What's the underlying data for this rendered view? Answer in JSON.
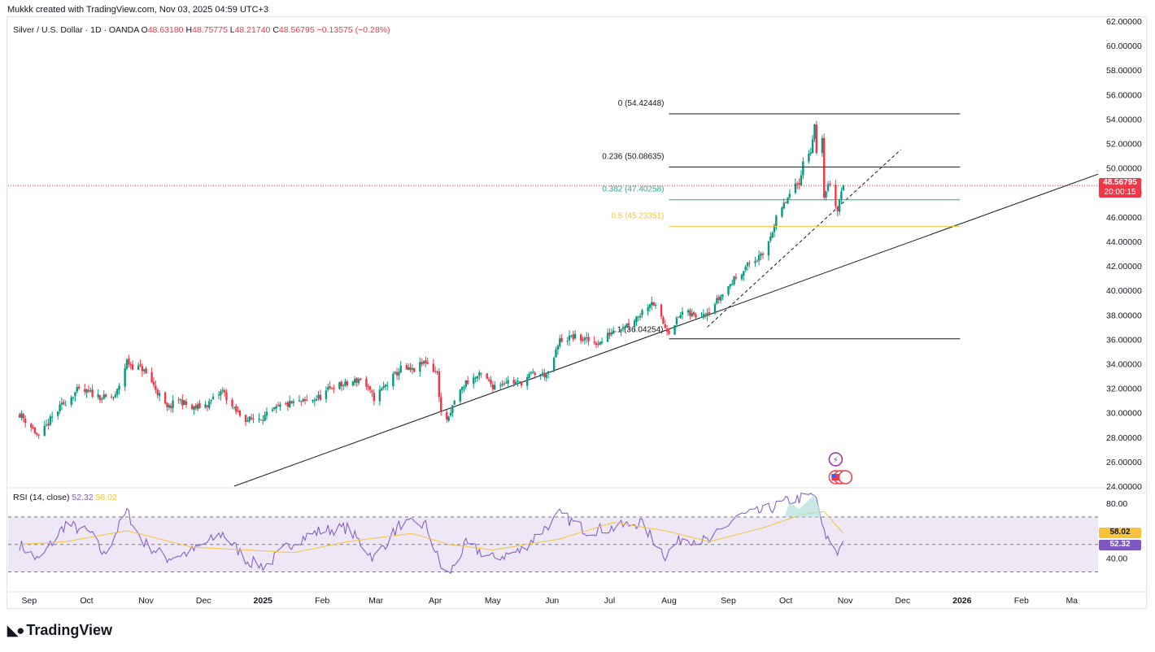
{
  "credit": "Mukkk created with TradingView.com, Nov 03, 2025 04:59 UTC+3",
  "brand": "TradingView",
  "legend": {
    "symbol": "Silver / U.S. Dollar · 1D · OANDA",
    "o_label": "O",
    "o": "48.63180",
    "h_label": "H",
    "h": "48.75775",
    "l_label": "L",
    "l": "48.21740",
    "c_label": "C",
    "c": "48.56795",
    "change": "−0.13575 (−0.28%)"
  },
  "rsi_legend": {
    "name": "RSI (14, close)",
    "rsi": "52.32",
    "ma": "58.02"
  },
  "last_price": {
    "value": "48.56795",
    "countdown": "20:00:15"
  },
  "rsi_tags": {
    "ma": "58.02",
    "rsi": "52.32"
  },
  "colors": {
    "up": "#089981",
    "down": "#f23645",
    "rsi": "#7e57c2",
    "rsi_ma": "#f7c33b",
    "fib_382": "#22ab94",
    "fib_5": "#f7c33b",
    "rsi_band": "#ede7f6"
  },
  "chart_data": {
    "type": "candlestick",
    "price_axis": {
      "min": 24,
      "max": 62,
      "ticks": [
        "62.00000",
        "60.00000",
        "58.00000",
        "56.00000",
        "54.00000",
        "52.00000",
        "50.00000",
        "48.00000",
        "46.00000",
        "44.00000",
        "42.00000",
        "40.00000",
        "38.00000",
        "36.00000",
        "34.00000",
        "32.00000",
        "30.00000",
        "28.00000",
        "26.00000",
        "24.00000"
      ]
    },
    "time_axis": [
      "Sep",
      "Oct",
      "Nov",
      "Dec",
      "2025",
      "Feb",
      "Mar",
      "Apr",
      "May",
      "Jun",
      "Jul",
      "Aug",
      "Sep",
      "Oct",
      "Nov",
      "Dec",
      "2026",
      "Feb",
      "Ma"
    ],
    "time_axis_bold": [
      "2025",
      "2026"
    ],
    "close_path": [
      [
        "2024-08-27",
        29.9
      ],
      [
        "2024-09-03",
        28.7
      ],
      [
        "2024-09-06",
        27.9
      ],
      [
        "2024-09-12",
        29.4
      ],
      [
        "2024-09-18",
        30.6
      ],
      [
        "2024-09-26",
        31.8
      ],
      [
        "2024-10-03",
        31.6
      ],
      [
        "2024-10-10",
        31.2
      ],
      [
        "2024-10-16",
        31.3
      ],
      [
        "2024-10-22",
        34.2
      ],
      [
        "2024-10-25",
        33.8
      ],
      [
        "2024-10-30",
        33.6
      ],
      [
        "2024-11-04",
        32.5
      ],
      [
        "2024-11-12",
        30.3
      ],
      [
        "2024-11-18",
        31.1
      ],
      [
        "2024-11-25",
        30.3
      ],
      [
        "2024-12-03",
        30.7
      ],
      [
        "2024-12-11",
        31.8
      ],
      [
        "2024-12-17",
        30.2
      ],
      [
        "2024-12-24",
        29.4
      ],
      [
        "2025-01-02",
        29.7
      ],
      [
        "2025-01-10",
        30.5
      ],
      [
        "2025-01-17",
        30.8
      ],
      [
        "2025-01-24",
        30.9
      ],
      [
        "2025-01-31",
        31.3
      ],
      [
        "2025-02-07",
        32.2
      ],
      [
        "2025-02-14",
        32.3
      ],
      [
        "2025-02-21",
        32.8
      ],
      [
        "2025-02-28",
        31.2
      ],
      [
        "2025-03-07",
        32.4
      ],
      [
        "2025-03-14",
        33.6
      ],
      [
        "2025-03-20",
        33.4
      ],
      [
        "2025-03-27",
        34.2
      ],
      [
        "2025-04-02",
        33.2
      ],
      [
        "2025-04-04",
        29.9
      ],
      [
        "2025-04-08",
        29.4
      ],
      [
        "2025-04-11",
        31.0
      ],
      [
        "2025-04-17",
        32.5
      ],
      [
        "2025-04-25",
        33.1
      ],
      [
        "2025-05-01",
        32.2
      ],
      [
        "2025-05-08",
        32.6
      ],
      [
        "2025-05-15",
        32.4
      ],
      [
        "2025-05-22",
        33.2
      ],
      [
        "2025-05-30",
        33.1
      ],
      [
        "2025-06-05",
        35.9
      ],
      [
        "2025-06-12",
        36.2
      ],
      [
        "2025-06-19",
        35.9
      ],
      [
        "2025-06-26",
        35.7
      ],
      [
        "2025-07-03",
        36.8
      ],
      [
        "2025-07-11",
        37.3
      ],
      [
        "2025-07-17",
        38.1
      ],
      [
        "2025-07-23",
        39.2
      ],
      [
        "2025-07-30",
        37.0
      ],
      [
        "2025-08-01",
        36.7
      ],
      [
        "2025-08-08",
        38.2
      ],
      [
        "2025-08-15",
        37.9
      ],
      [
        "2025-08-22",
        38.4
      ],
      [
        "2025-08-29",
        39.7
      ],
      [
        "2025-09-05",
        41.1
      ],
      [
        "2025-09-12",
        42.2
      ],
      [
        "2025-09-19",
        42.8
      ],
      [
        "2025-09-26",
        45.8
      ],
      [
        "2025-10-03",
        47.8
      ],
      [
        "2025-10-08",
        48.9
      ],
      [
        "2025-10-10",
        50.4
      ],
      [
        "2025-10-14",
        51.5
      ],
      [
        "2025-10-16",
        53.5
      ],
      [
        "2025-10-17",
        51.0
      ],
      [
        "2025-10-20",
        52.2
      ],
      [
        "2025-10-21",
        47.8
      ],
      [
        "2025-10-24",
        48.8
      ],
      [
        "2025-10-28",
        46.5
      ],
      [
        "2025-10-30",
        48.3
      ],
      [
        "2025-10-31",
        48.7
      ]
    ],
    "fibonacci": [
      {
        "label": "0 (54.42448)",
        "value": 54.42448,
        "color": "#131722"
      },
      {
        "label": "0.236 (50.08635)",
        "value": 50.08635,
        "color": "#131722"
      },
      {
        "label": "0.382 (47.40258)",
        "value": 47.40258,
        "color": "#22ab94"
      },
      {
        "label": "0.5 (45.23351)",
        "value": 45.23351,
        "color": "#f7c33b"
      },
      {
        "label": "1 (36.04254)",
        "value": 36.04254,
        "color": "#131722"
      }
    ],
    "fib_start": "2025-08-01",
    "fib_end": "2025-12-31",
    "trendline": {
      "from": [
        "2024-12-17",
        24.0
      ],
      "to": [
        "2026-03-13",
        49.5
      ]
    },
    "dashed_trendline": {
      "from": [
        "2025-08-21",
        37.0
      ],
      "to": [
        "2025-11-30",
        51.5
      ]
    },
    "last_close": 48.56795,
    "rsi": {
      "axis_ticks": [
        "80.00",
        "40.00"
      ],
      "levels": [
        70,
        50,
        30
      ],
      "values": [
        [
          "2024-08-27",
          50
        ],
        [
          "2024-09-06",
          38
        ],
        [
          "2024-09-20",
          65
        ],
        [
          "2024-10-03",
          58
        ],
        [
          "2024-10-10",
          42
        ],
        [
          "2024-10-22",
          74
        ],
        [
          "2024-10-30",
          52
        ],
        [
          "2024-11-12",
          40
        ],
        [
          "2024-11-25",
          45
        ],
        [
          "2024-12-11",
          58
        ],
        [
          "2024-12-24",
          38
        ],
        [
          "2025-01-02",
          34
        ],
        [
          "2025-01-17",
          52
        ],
        [
          "2025-01-31",
          60
        ],
        [
          "2025-02-14",
          62
        ],
        [
          "2025-02-28",
          40
        ],
        [
          "2025-03-14",
          65
        ],
        [
          "2025-03-27",
          64
        ],
        [
          "2025-04-04",
          34
        ],
        [
          "2025-04-08",
          28
        ],
        [
          "2025-04-17",
          50
        ],
        [
          "2025-05-01",
          40
        ],
        [
          "2025-05-15",
          45
        ],
        [
          "2025-06-05",
          72
        ],
        [
          "2025-06-19",
          60
        ],
        [
          "2025-07-03",
          62
        ],
        [
          "2025-07-17",
          66
        ],
        [
          "2025-07-30",
          42
        ],
        [
          "2025-08-08",
          55
        ],
        [
          "2025-08-22",
          52
        ],
        [
          "2025-09-05",
          70
        ],
        [
          "2025-09-19",
          74
        ],
        [
          "2025-10-03",
          82
        ],
        [
          "2025-10-16",
          86
        ],
        [
          "2025-10-21",
          58
        ],
        [
          "2025-10-28",
          45
        ],
        [
          "2025-10-31",
          52.32
        ]
      ],
      "ma": [
        [
          "2024-08-27",
          50
        ],
        [
          "2024-09-20",
          52
        ],
        [
          "2024-10-22",
          60
        ],
        [
          "2024-11-25",
          48
        ],
        [
          "2024-12-24",
          46
        ],
        [
          "2025-01-17",
          44
        ],
        [
          "2025-02-14",
          52
        ],
        [
          "2025-03-20",
          58
        ],
        [
          "2025-04-08",
          50
        ],
        [
          "2025-05-01",
          46
        ],
        [
          "2025-06-05",
          54
        ],
        [
          "2025-07-03",
          66
        ],
        [
          "2025-07-30",
          60
        ],
        [
          "2025-08-22",
          52
        ],
        [
          "2025-09-19",
          62
        ],
        [
          "2025-10-10",
          72
        ],
        [
          "2025-10-21",
          74
        ],
        [
          "2025-10-31",
          58.02
        ]
      ]
    }
  }
}
